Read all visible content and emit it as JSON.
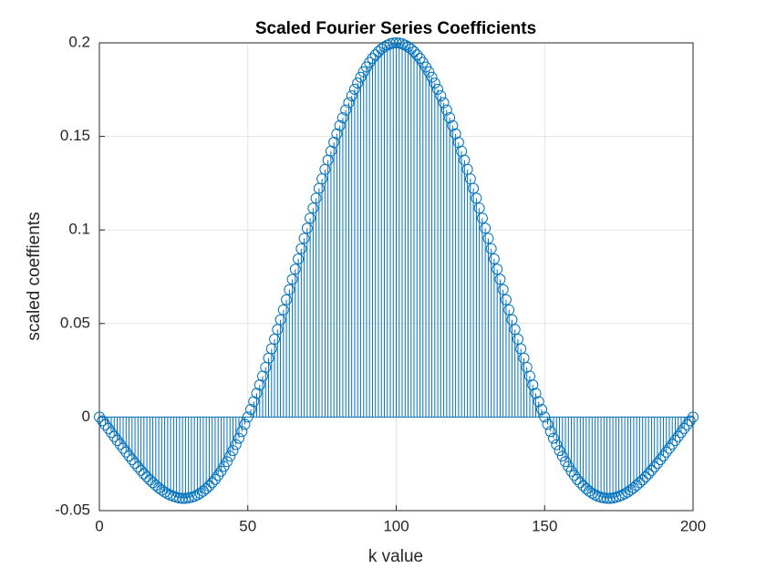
{
  "chart_data": {
    "type": "stem",
    "title": "Scaled Fourier Series Coefficients",
    "x_label": "k value",
    "y_label": "scaled coeffients",
    "xlim": [
      0,
      200
    ],
    "xticks": [
      0,
      50,
      100,
      150,
      200
    ],
    "ylim": [
      -0.05,
      0.2
    ],
    "yticks": [
      -0.05,
      0,
      0.05,
      0.1,
      0.15,
      0.2
    ],
    "grid": true,
    "color": "#0072bd",
    "x": [
      0,
      1,
      2,
      3,
      4,
      5,
      6,
      7,
      8,
      9,
      10,
      11,
      12,
      13,
      14,
      15,
      16,
      17,
      18,
      19,
      20,
      21,
      22,
      23,
      24,
      25,
      26,
      27,
      28,
      29,
      30,
      31,
      32,
      33,
      34,
      35,
      36,
      37,
      38,
      39,
      40,
      41,
      42,
      43,
      44,
      45,
      46,
      47,
      48,
      49,
      50,
      51,
      52,
      53,
      54,
      55,
      56,
      57,
      58,
      59,
      60,
      61,
      62,
      63,
      64,
      65,
      66,
      67,
      68,
      69,
      70,
      71,
      72,
      73,
      74,
      75,
      76,
      77,
      78,
      79,
      80,
      81,
      82,
      83,
      84,
      85,
      86,
      87,
      88,
      89,
      90,
      91,
      92,
      93,
      94,
      95,
      96,
      97,
      98,
      99,
      100,
      101,
      102,
      103,
      104,
      105,
      106,
      107,
      108,
      109,
      110,
      111,
      112,
      113,
      114,
      115,
      116,
      117,
      118,
      119,
      120,
      121,
      122,
      123,
      124,
      125,
      126,
      127,
      128,
      129,
      130,
      131,
      132,
      133,
      134,
      135,
      136,
      137,
      138,
      139,
      140,
      141,
      142,
      143,
      144,
      145,
      146,
      147,
      148,
      149,
      150,
      151,
      152,
      153,
      154,
      155,
      156,
      157,
      158,
      159,
      160,
      161,
      162,
      163,
      164,
      165,
      166,
      167,
      168,
      169,
      170,
      171,
      172,
      173,
      174,
      175,
      176,
      177,
      178,
      179,
      180,
      181,
      182,
      183,
      184,
      185,
      186,
      187,
      188,
      189,
      190,
      191,
      192,
      193,
      194,
      195,
      196,
      197,
      198,
      199,
      200
    ],
    "values": [
      0,
      -0.002,
      -0.0041,
      -0.0061,
      -0.0082,
      -0.0104,
      -0.0125,
      -0.0146,
      -0.0167,
      -0.0187,
      -0.0208,
      -0.0228,
      -0.0248,
      -0.0267,
      -0.0285,
      -0.0303,
      -0.032,
      -0.0336,
      -0.0351,
      -0.0365,
      -0.0378,
      -0.039,
      -0.0401,
      -0.041,
      -0.0418,
      -0.0424,
      -0.0429,
      -0.0433,
      -0.0434,
      -0.0434,
      -0.0432,
      -0.0429,
      -0.0424,
      -0.0416,
      -0.0407,
      -0.0396,
      -0.0383,
      -0.0368,
      -0.0351,
      -0.0333,
      -0.0312,
      -0.0289,
      -0.0264,
      -0.0238,
      -0.0209,
      -0.0179,
      -0.0147,
      -0.0113,
      -0.0077,
      -0.0039,
      0,
      0.0041,
      0.0083,
      0.0127,
      0.0172,
      0.0219,
      0.0266,
      0.0315,
      0.0365,
      0.0416,
      0.0468,
      0.052,
      0.0573,
      0.0627,
      0.0681,
      0.0736,
      0.079,
      0.0845,
      0.09,
      0.0955,
      0.1009,
      0.1063,
      0.1117,
      0.117,
      0.1222,
      0.1273,
      0.1324,
      0.1373,
      0.1421,
      0.1468,
      0.1514,
      0.1558,
      0.16,
      0.1641,
      0.168,
      0.1717,
      0.1752,
      0.1785,
      0.1816,
      0.1845,
      0.1871,
      0.1895,
      0.1917,
      0.1936,
      0.1953,
      0.1967,
      0.1979,
      0.1988,
      0.1995,
      0.1999,
      0.2,
      0.1999,
      0.1995,
      0.1988,
      0.1979,
      0.1967,
      0.1953,
      0.1936,
      0.1917,
      0.1895,
      0.1871,
      0.1845,
      0.1816,
      0.1785,
      0.1752,
      0.1717,
      0.168,
      0.1641,
      0.16,
      0.1558,
      0.1514,
      0.1468,
      0.1421,
      0.1373,
      0.1324,
      0.1273,
      0.1222,
      0.117,
      0.1117,
      0.1063,
      0.1009,
      0.0955,
      0.09,
      0.0845,
      0.079,
      0.0736,
      0.0681,
      0.0627,
      0.0573,
      0.052,
      0.0468,
      0.0416,
      0.0365,
      0.0315,
      0.0266,
      0.0219,
      0.0172,
      0.0127,
      0.0083,
      0.0041,
      0,
      -0.0039,
      -0.0077,
      -0.0113,
      -0.0147,
      -0.0179,
      -0.0209,
      -0.0238,
      -0.0264,
      -0.0289,
      -0.0312,
      -0.0333,
      -0.0351,
      -0.0368,
      -0.0383,
      -0.0396,
      -0.0407,
      -0.0416,
      -0.0424,
      -0.0429,
      -0.0432,
      -0.0434,
      -0.0434,
      -0.0433,
      -0.0429,
      -0.0424,
      -0.0418,
      -0.041,
      -0.0401,
      -0.039,
      -0.0378,
      -0.0365,
      -0.0351,
      -0.0336,
      -0.032,
      -0.0303,
      -0.0285,
      -0.0267,
      -0.0248,
      -0.0228,
      -0.0208,
      -0.0187,
      -0.0167,
      -0.0146,
      -0.0125,
      -0.0104,
      -0.0082,
      -0.0061,
      -0.0041,
      -0.002,
      0
    ]
  }
}
